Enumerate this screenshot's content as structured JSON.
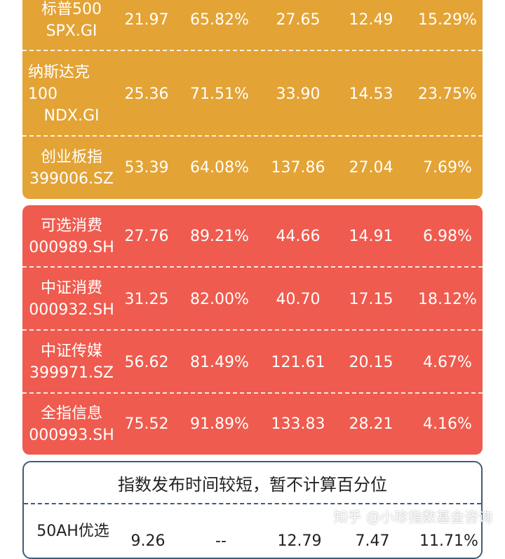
{
  "orange_group": {
    "rows": [
      {
        "name": [
          "标普500",
          "SPX.GI"
        ],
        "v1": "21.97",
        "v2": "65.82%",
        "v3": "27.65",
        "v4": "12.49",
        "v5": "15.29%"
      },
      {
        "name": [
          "纳斯达克",
          "100",
          "NDX.GI"
        ],
        "v1": "25.36",
        "v2": "71.51%",
        "v3": "33.90",
        "v4": "14.53",
        "v5": "23.75%"
      },
      {
        "name": [
          "创业板指",
          "399006.SZ"
        ],
        "v1": "53.39",
        "v2": "64.08%",
        "v3": "137.86",
        "v4": "27.04",
        "v5": "7.69%"
      }
    ]
  },
  "red_group": {
    "rows": [
      {
        "name": [
          "可选消费",
          "000989.SH"
        ],
        "v1": "27.76",
        "v2": "89.21%",
        "v3": "44.66",
        "v4": "14.91",
        "v5": "6.98%"
      },
      {
        "name": [
          "中证消费",
          "000932.SH"
        ],
        "v1": "31.25",
        "v2": "82.00%",
        "v3": "40.70",
        "v4": "17.15",
        "v5": "18.12%"
      },
      {
        "name": [
          "中证传媒",
          "399971.SZ"
        ],
        "v1": "56.62",
        "v2": "81.49%",
        "v3": "121.61",
        "v4": "20.15",
        "v5": "4.67%"
      },
      {
        "name": [
          "全指信息",
          "000993.SH"
        ],
        "v1": "75.52",
        "v2": "91.89%",
        "v3": "133.83",
        "v4": "28.21",
        "v5": "4.16%"
      }
    ]
  },
  "white_group": {
    "title": "指数发布时间较短，暂不计算百分位",
    "rows": [
      {
        "name": [
          "50AH优选"
        ],
        "v1": "9.26",
        "v2": "--",
        "v3": "12.79",
        "v4": "7.47",
        "v5": "11.71%"
      }
    ]
  },
  "watermark": "知乎 @小珍指数基金咨询",
  "colors": {
    "orange": "#E3A335",
    "red": "#EF5B4E",
    "border": "#3F5D78"
  }
}
